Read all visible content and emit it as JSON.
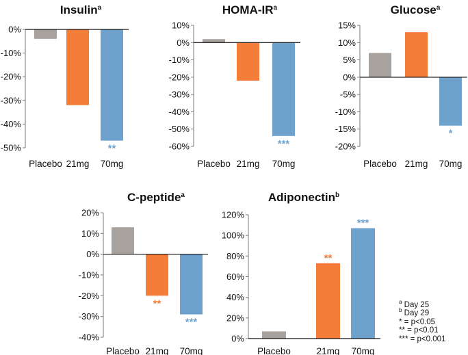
{
  "colors": {
    "Placebo": "#a8a29e",
    "21mg": "#f47d3a",
    "70mg": "#6fa1cd"
  },
  "chart_data": [
    {
      "id": "insulin",
      "type": "bar",
      "title": "Insulin",
      "title_sup": "a",
      "categories": [
        "Placebo",
        "21mg",
        "70mg"
      ],
      "values": [
        -4,
        -32,
        -47
      ],
      "significance": [
        "",
        "",
        "**"
      ],
      "ylim": [
        -50,
        0
      ],
      "yticks": [
        0,
        -10,
        -20,
        -30,
        -40,
        -50
      ],
      "ytick_labels": [
        "0%",
        "-10%",
        "-20%",
        "-30%",
        "-40%",
        "-50%"
      ]
    },
    {
      "id": "homa",
      "type": "bar",
      "title": "HOMA-IR",
      "title_sup": "a",
      "categories": [
        "Placebo",
        "21mg",
        "70mg"
      ],
      "values": [
        2,
        -22,
        -54
      ],
      "significance": [
        "",
        "",
        "***"
      ],
      "ylim": [
        -60,
        10
      ],
      "yticks": [
        10,
        0,
        -10,
        -20,
        -30,
        -40,
        -50,
        -60
      ],
      "ytick_labels": [
        "10%",
        "0%",
        "-10%",
        "-20%",
        "-30%",
        "-40%",
        "-50%",
        "-60%"
      ]
    },
    {
      "id": "glucose",
      "type": "bar",
      "title": "Glucose",
      "title_sup": "a",
      "categories": [
        "Placebo",
        "21mg",
        "70mg"
      ],
      "values": [
        7,
        13,
        -14
      ],
      "significance": [
        "",
        "",
        "*"
      ],
      "ylim": [
        -20,
        15
      ],
      "yticks": [
        15,
        10,
        5,
        0,
        -5,
        -10,
        -15,
        -20
      ],
      "ytick_labels": [
        "15%",
        "10%",
        "5%",
        "0%",
        "-5%",
        "-10%",
        "-15%",
        "-20%"
      ]
    },
    {
      "id": "cpeptide",
      "type": "bar",
      "title": "C-peptide",
      "title_sup": "a",
      "categories": [
        "Placebo",
        "21mg",
        "70mg"
      ],
      "values": [
        13,
        -20,
        -29
      ],
      "significance": [
        "",
        "**",
        "***"
      ],
      "ylim": [
        -40,
        20
      ],
      "yticks": [
        20,
        10,
        0,
        -10,
        -20,
        -30,
        -40
      ],
      "ytick_labels": [
        "20%",
        "10%",
        "0%",
        "-10%",
        "-20%",
        "-30%",
        "-40%"
      ]
    },
    {
      "id": "adiponectin",
      "type": "bar",
      "title": "Adiponectin",
      "title_sup": "b",
      "categories": [
        "Placebo",
        "21mg",
        "70mg"
      ],
      "values": [
        7,
        73,
        107
      ],
      "significance": [
        "",
        "**",
        "***"
      ],
      "ylim": [
        0,
        120
      ],
      "yticks": [
        120,
        100,
        80,
        60,
        40,
        20,
        0
      ],
      "ytick_labels": [
        "120%",
        "100%",
        "80%",
        "60%",
        "40%",
        "20%",
        "0%"
      ]
    }
  ],
  "legend": [
    {
      "sup": "a",
      "text": "Day 25"
    },
    {
      "sup": "b",
      "text": "Day 29"
    },
    {
      "sup": "",
      "text": "* = p<0.05"
    },
    {
      "sup": "",
      "text": "** = p<0.01"
    },
    {
      "sup": "",
      "text": "*** = p<0.001"
    }
  ]
}
